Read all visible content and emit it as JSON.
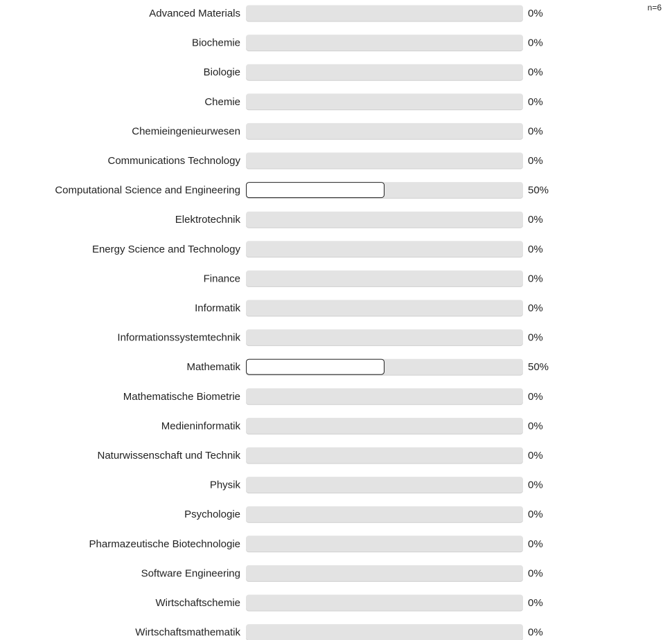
{
  "n_label": "n=6",
  "colors": {
    "track": "#e3e3e3",
    "track_shadow": "#cfcfcf",
    "fill": "#ffffff",
    "fill_border": "#222222",
    "text": "#222222"
  },
  "chart_data": {
    "type": "bar",
    "orientation": "horizontal",
    "xlim": [
      0,
      100
    ],
    "unit": "%",
    "categories": [
      "Advanced Materials",
      "Biochemie",
      "Biologie",
      "Chemie",
      "Chemieingenieurwesen",
      "Communications Technology",
      "Computational Science and Engineering",
      "Elektrotechnik",
      "Energy Science and Technology",
      "Finance",
      "Informatik",
      "Informationssystemtechnik",
      "Mathematik",
      "Mathematische Biometrie",
      "Medieninformatik",
      "Naturwissenschaft und Technik",
      "Physik",
      "Psychologie",
      "Pharmazeutische Biotechnologie",
      "Software Engineering",
      "Wirtschaftschemie",
      "Wirtschaftsmathematik"
    ],
    "values": [
      0,
      0,
      0,
      0,
      0,
      0,
      50,
      0,
      0,
      0,
      0,
      0,
      50,
      0,
      0,
      0,
      0,
      0,
      0,
      0,
      0,
      0
    ],
    "value_labels": [
      "0%",
      "0%",
      "0%",
      "0%",
      "0%",
      "0%",
      "50%",
      "0%",
      "0%",
      "0%",
      "0%",
      "0%",
      "50%",
      "0%",
      "0%",
      "0%",
      "0%",
      "0%",
      "0%",
      "0%",
      "0%",
      "0%"
    ]
  }
}
